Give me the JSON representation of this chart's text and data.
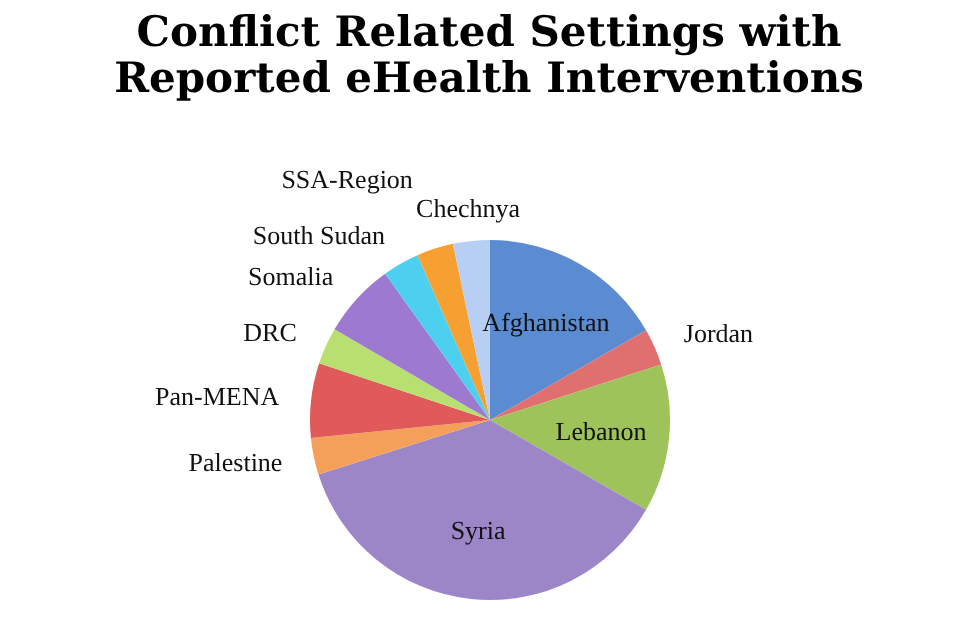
{
  "chart_data": {
    "type": "pie",
    "title": "Conflict Related Settings with Reported eHealth Interventions",
    "categories": [
      "Afghanistan",
      "Jordan",
      "Lebanon",
      "Syria",
      "Palestine",
      "Pan-MENA",
      "DRC",
      "Somalia",
      "South Sudan",
      "SSA-Region",
      "Chechnya"
    ],
    "values": [
      16.7,
      3.3,
      13.3,
      36.8,
      3.3,
      6.7,
      3.3,
      6.7,
      3.3,
      3.3,
      3.3
    ],
    "colors": [
      "#5b8bd0",
      "#e07070",
      "#9dc35a",
      "#9d86c8",
      "#f5a05a",
      "#e05a5a",
      "#b8e070",
      "#9d7ad0",
      "#4dd0ef",
      "#f5a030",
      "#b8cff5"
    ],
    "legend": false
  }
}
